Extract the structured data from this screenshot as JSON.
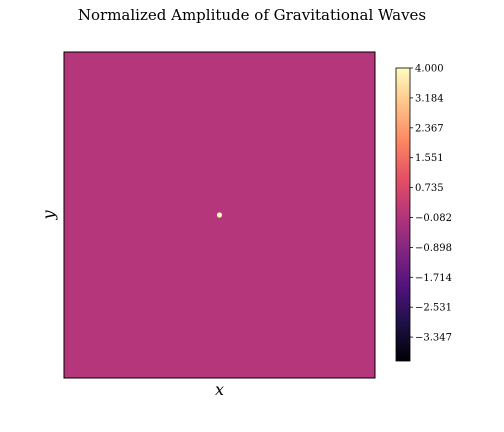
{
  "chart_data": {
    "type": "heatmap",
    "title": "Normalized Amplitude of Gravitational Waves",
    "xlabel": "x",
    "ylabel": "y",
    "background_value": -0.082,
    "peak": {
      "x": 0.5,
      "y": 0.5,
      "value": 4.0
    },
    "colorbar": {
      "colormap": "magma",
      "vmin": -4.0,
      "vmax": 4.0,
      "ticks": [
        4.0,
        3.184,
        2.367,
        1.551,
        0.735,
        -0.082,
        -0.898,
        -1.714,
        -2.531,
        -3.347
      ],
      "tick_labels": [
        "4.000",
        "3.184",
        "2.367",
        "1.551",
        "0.735",
        "−0.082",
        "−0.898",
        "−1.714",
        "−2.531",
        "−3.347"
      ]
    },
    "grid": false
  }
}
